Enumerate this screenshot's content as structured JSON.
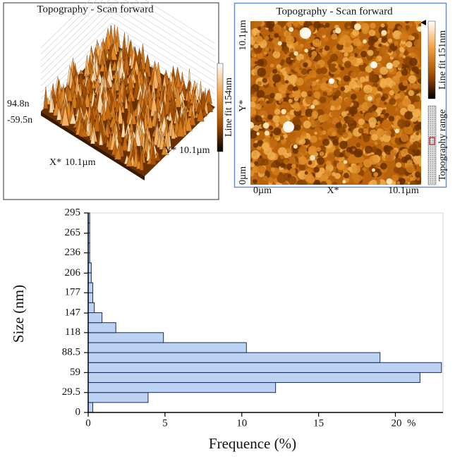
{
  "panels": {
    "surface_3d": {
      "title": "Topography - Scan forward",
      "z_max": "94.8n",
      "z_min": "-59.5n",
      "x_label": "X*",
      "x_size": "10.1µm",
      "y_label": "Y*",
      "y_size": "10.1µm",
      "colorbar_label": "Line fit 154nm"
    },
    "image_2d": {
      "title": "Topography - Scan forward",
      "y_top": "10.1µm",
      "y_label": "Y*",
      "y_bottom": "0µm",
      "x_left": "0µm",
      "x_label": "X*",
      "x_right": "10.1µm",
      "colorbar_label": "Line fit 151nm",
      "range_label": "Topography range"
    }
  },
  "chart_data": {
    "type": "histogram",
    "orientation": "horizontal",
    "xlabel": "Frequence (%)",
    "ylabel": "Size (nm)",
    "bins": [
      0,
      14.75,
      29.5,
      44.25,
      59,
      73.75,
      88.5,
      103.25,
      118,
      132.75,
      147.5,
      162.25,
      177,
      191.75,
      206.5,
      221.25,
      236,
      250.75,
      265.5,
      280.25,
      295
    ],
    "values": [
      0.3,
      3.9,
      12.2,
      21.6,
      23.0,
      19.0,
      10.3,
      4.9,
      1.8,
      0.9,
      0.4,
      0.3,
      0.3,
      0.2,
      0.2,
      0.1,
      0.1,
      0.1,
      0.1,
      0.1
    ],
    "color": "#bcd2f2",
    "edge_color": "#1b2a55",
    "ylim": [
      0,
      295
    ],
    "yticks": [
      0,
      29.5,
      59,
      88.5,
      118,
      147,
      177,
      206,
      236,
      265,
      295
    ],
    "xlim": [
      0,
      23.1
    ],
    "xticks": [
      0,
      5,
      10,
      15,
      {
        "value": 20,
        "label": "20  %"
      }
    ]
  }
}
